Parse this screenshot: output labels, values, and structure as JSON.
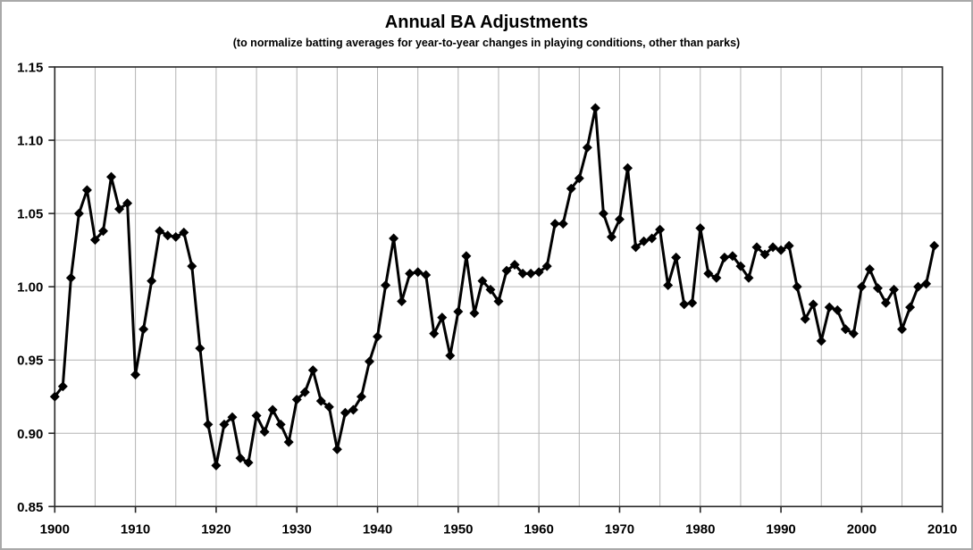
{
  "chart": {
    "title": "Annual BA Adjustments",
    "subtitle": "(to normalize batting averages for year-to-year changes in playing conditions, other than parks)"
  },
  "chart_data": {
    "type": "line",
    "title": "Annual BA Adjustments",
    "subtitle": "(to normalize batting averages for year-to-year changes in playing conditions, other than parks)",
    "xlabel": "",
    "ylabel": "",
    "x_start": 1900,
    "x_step": 1,
    "xlim": [
      1900,
      2010
    ],
    "ylim": [
      0.85,
      1.15
    ],
    "x_tick_labels": [
      "1900",
      "1910",
      "1920",
      "1930",
      "1940",
      "1950",
      "1960",
      "1970",
      "1980",
      "1990",
      "2000",
      "2010"
    ],
    "x_tick_values": [
      1900,
      1910,
      1920,
      1930,
      1940,
      1950,
      1960,
      1970,
      1980,
      1990,
      2000,
      2010
    ],
    "x_gridline_step": 5,
    "y_tick_labels": [
      "0.85",
      "0.90",
      "0.95",
      "1.00",
      "1.05",
      "1.10",
      "1.15"
    ],
    "y_tick_values": [
      0.85,
      0.9,
      0.95,
      1.0,
      1.05,
      1.1,
      1.15
    ],
    "grid": true,
    "legend_position": "none",
    "marker": "diamond",
    "line_color": "#000000",
    "marker_color": "#000000",
    "gridline_color": "#b3b3b3",
    "axis_color": "#262626",
    "years": [
      1900,
      1901,
      1902,
      1903,
      1904,
      1905,
      1906,
      1907,
      1908,
      1909,
      1910,
      1911,
      1912,
      1913,
      1914,
      1915,
      1916,
      1917,
      1918,
      1919,
      1920,
      1921,
      1922,
      1923,
      1924,
      1925,
      1926,
      1927,
      1928,
      1929,
      1930,
      1931,
      1932,
      1933,
      1934,
      1935,
      1936,
      1937,
      1938,
      1939,
      1940,
      1941,
      1942,
      1943,
      1944,
      1945,
      1946,
      1947,
      1948,
      1949,
      1950,
      1951,
      1952,
      1953,
      1954,
      1955,
      1956,
      1957,
      1958,
      1959,
      1960,
      1961,
      1962,
      1963,
      1964,
      1965,
      1966,
      1967,
      1968,
      1969,
      1970,
      1971,
      1972,
      1973,
      1974,
      1975,
      1976,
      1977,
      1978,
      1979,
      1980,
      1981,
      1982,
      1983,
      1984,
      1985,
      1986,
      1987,
      1988,
      1989,
      1990,
      1991,
      1992,
      1993,
      1994,
      1995,
      1996,
      1997,
      1998,
      1999,
      2000,
      2001,
      2002,
      2003,
      2004,
      2005,
      2006,
      2007,
      2008,
      2009
    ],
    "values": [
      0.925,
      0.932,
      1.006,
      1.05,
      1.066,
      1.032,
      1.038,
      1.075,
      1.053,
      1.057,
      0.94,
      0.971,
      1.004,
      1.038,
      1.035,
      1.034,
      1.037,
      1.014,
      0.958,
      0.906,
      0.878,
      0.906,
      0.911,
      0.883,
      0.88,
      0.912,
      0.901,
      0.916,
      0.906,
      0.894,
      0.923,
      0.928,
      0.943,
      0.922,
      0.918,
      0.889,
      0.914,
      0.916,
      0.925,
      0.949,
      0.966,
      1.001,
      1.033,
      0.99,
      1.009,
      1.01,
      1.008,
      0.968,
      0.979,
      0.953,
      0.983,
      1.021,
      0.982,
      1.004,
      0.998,
      0.99,
      1.011,
      1.015,
      1.009,
      1.009,
      1.01,
      1.014,
      1.043,
      1.043,
      1.067,
      1.074,
      1.095,
      1.122,
      1.05,
      1.034,
      1.046,
      1.081,
      1.027,
      1.031,
      1.033,
      1.039,
      1.001,
      1.02,
      0.988,
      0.989,
      1.04,
      1.009,
      1.006,
      1.02,
      1.021,
      1.014,
      1.006,
      1.027,
      1.022,
      1.027,
      1.025,
      1.028,
      1.0,
      0.978,
      0.988,
      0.963,
      0.986,
      0.984,
      0.971,
      0.968,
      1.0,
      1.012,
      0.999,
      0.989,
      0.998,
      0.971,
      0.986,
      1.0,
      1.002,
      1.028
    ]
  }
}
